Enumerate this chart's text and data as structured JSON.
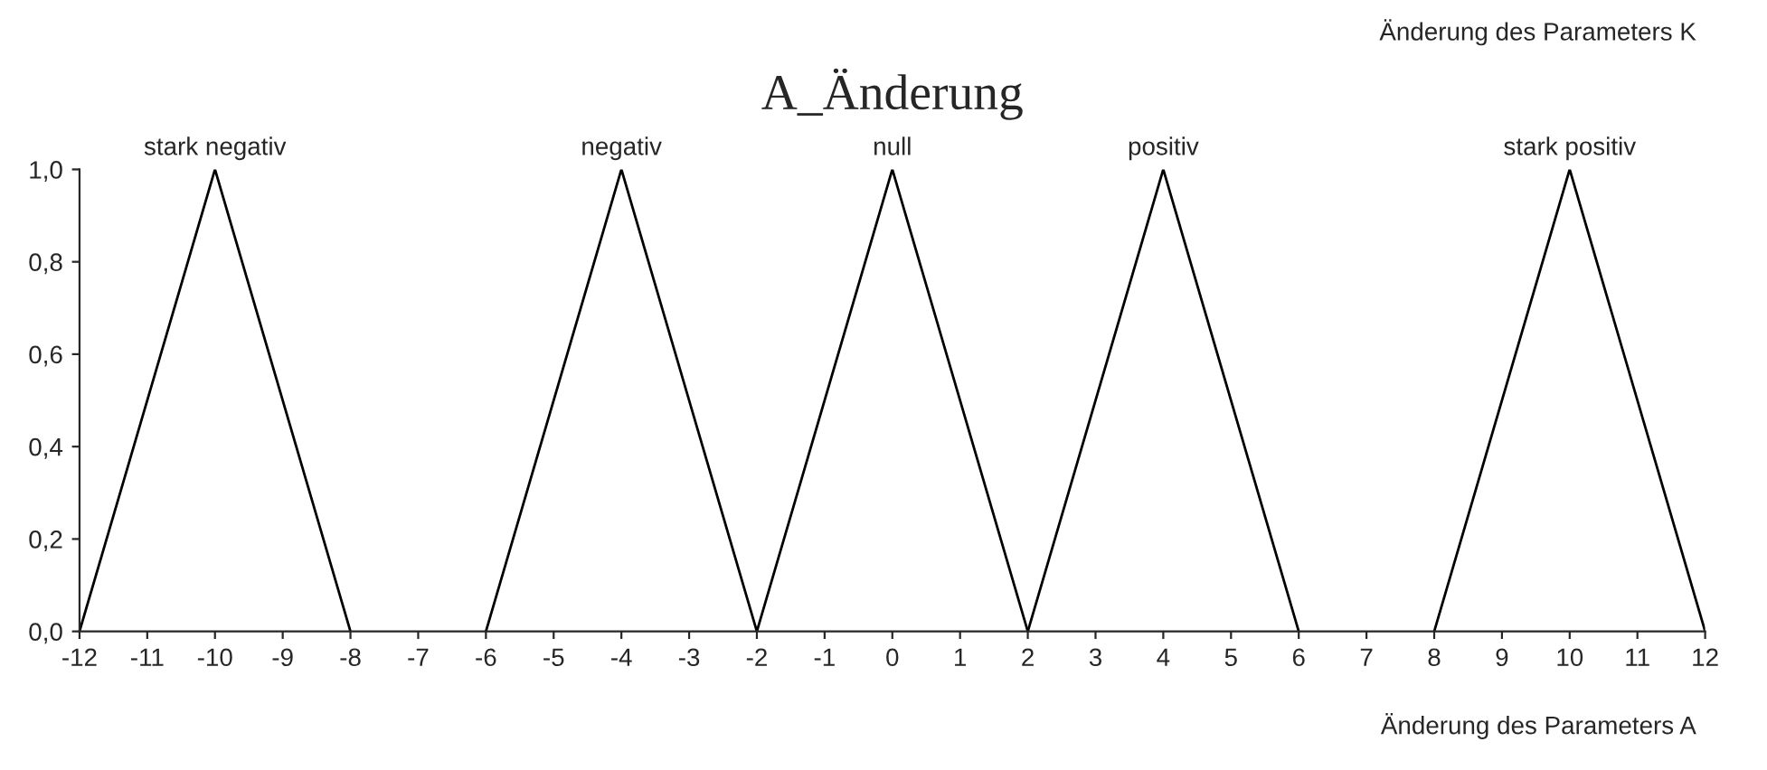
{
  "chart_data": {
    "type": "line",
    "title": "A_Änderung",
    "xlabel": "Änderung des Parameters A",
    "annotations": [
      "Änderung des Parameters K"
    ],
    "series": [
      {
        "name": "stark negativ",
        "color": "#000000",
        "x": [
          -12,
          -10,
          -8
        ],
        "values": [
          0,
          1,
          0
        ]
      },
      {
        "name": "negativ",
        "color": "#000000",
        "x": [
          -6,
          -4,
          -2
        ],
        "values": [
          0,
          1,
          0
        ]
      },
      {
        "name": "null",
        "color": "#000000",
        "x": [
          -2,
          0,
          2
        ],
        "values": [
          0,
          1,
          0
        ]
      },
      {
        "name": "positiv",
        "color": "#000000",
        "x": [
          2,
          4,
          6
        ],
        "values": [
          0,
          1,
          0
        ]
      },
      {
        "name": "stark positiv",
        "color": "#000000",
        "x": [
          8,
          10,
          12
        ],
        "values": [
          0,
          1,
          0
        ]
      }
    ],
    "xlim": [
      -12,
      12
    ],
    "ylim": [
      0,
      1
    ],
    "xticks": [
      -12,
      -11,
      -10,
      -9,
      -8,
      -7,
      -6,
      -5,
      -4,
      -3,
      -2,
      -1,
      0,
      1,
      2,
      3,
      4,
      5,
      6,
      7,
      8,
      9,
      10,
      11,
      12
    ],
    "yticks": [
      {
        "value": 0,
        "label": "0,0"
      },
      {
        "value": 0.2,
        "label": "0,2"
      },
      {
        "value": 0.4,
        "label": "0,4"
      },
      {
        "value": 0.6,
        "label": "0,6"
      },
      {
        "value": 0.8,
        "label": "0,8"
      },
      {
        "value": 1,
        "label": "1,0"
      }
    ],
    "grid": false,
    "legend": false,
    "marker": "none",
    "line_style": "solid"
  }
}
